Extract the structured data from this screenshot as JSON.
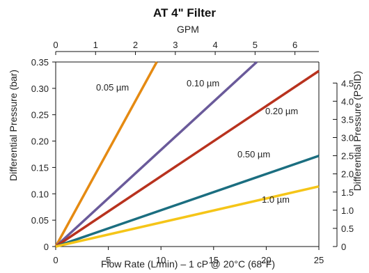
{
  "chart_data": {
    "type": "line",
    "title": "AT 4\" Filter",
    "xlabel": "Flow Rate (L/min) – 1 cP @ 20°C (68°F)",
    "ylabel": "Differential Pressure (bar)",
    "x2label": "GPM",
    "y2label": "Differential Pressure (PSID)",
    "xlim": [
      0,
      25
    ],
    "ylim": [
      0,
      0.35
    ],
    "x2lim": [
      0,
      6.6
    ],
    "y2lim": [
      0,
      5.08
    ],
    "xticks": [
      "0",
      "5",
      "10",
      "15",
      "20",
      "25"
    ],
    "yticks": [
      "0",
      "0.05",
      "0.10",
      "0.15",
      "0.20",
      "0.25",
      "0.30",
      "0.35"
    ],
    "x2ticks": [
      "0",
      "1",
      "2",
      "3",
      "4",
      "5",
      "6"
    ],
    "y2ticks": [
      "0",
      "0.5",
      "1.0",
      "1.5",
      "2.0",
      "2.5",
      "3.0",
      "3.5",
      "4.0",
      "4.5"
    ],
    "grid": false,
    "series": [
      {
        "name": "0.05 µm",
        "color": "#E58A12",
        "x": [
          0,
          9.6
        ],
        "y": [
          0,
          0.35
        ]
      },
      {
        "name": "0.10 µm",
        "color": "#6A5A9A",
        "x": [
          0,
          19.1
        ],
        "y": [
          0,
          0.35
        ]
      },
      {
        "name": "0.20 µm",
        "color": "#B8321E",
        "x": [
          0,
          25
        ],
        "y": [
          0,
          0.333
        ]
      },
      {
        "name": "0.50 µm",
        "color": "#1B6E80",
        "x": [
          0,
          25
        ],
        "y": [
          0,
          0.172
        ]
      },
      {
        "name": "1.0 µm",
        "color": "#F5C518",
        "x": [
          0,
          25
        ],
        "y": [
          0,
          0.114
        ]
      }
    ]
  }
}
